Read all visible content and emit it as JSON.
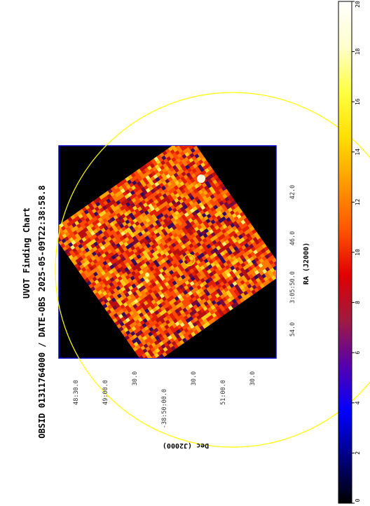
{
  "chart_data": {
    "type": "heatmap",
    "title": "UVOT Finding Chart",
    "subtitle": "OBSID 01311764000 / DATE-OBS 2025-05-09T22:38:58.8",
    "xlabel": "RA (J2000)",
    "ylabel": "Dec (J2000)",
    "ra_tick_labels": [
      "54.0",
      "3:05:50.0",
      "46.0",
      "42.0"
    ],
    "dec_tick_labels": [
      "48:30.0",
      "49:00.0",
      "30.0",
      "-38:50:00.0",
      "30.0",
      "51:00.0",
      "30.0"
    ],
    "colorbar": {
      "min": 0,
      "max": 20,
      "ticks": [
        0,
        2,
        4,
        6,
        8,
        10,
        12,
        14,
        16,
        18,
        20
      ],
      "colormap": [
        "#000000",
        "#000080",
        "#0000ff",
        "#5500b0",
        "#a01a40",
        "#e00000",
        "#ff5500",
        "#ff9900",
        "#ffdd00",
        "#ffff40",
        "#ffffcc",
        "#ffffff"
      ]
    },
    "grid": false,
    "image_rotation_deg": -35,
    "source_circle_color": "#ffff00",
    "field_circle_color": "#ffff00",
    "frame_color": "#0000cc"
  }
}
